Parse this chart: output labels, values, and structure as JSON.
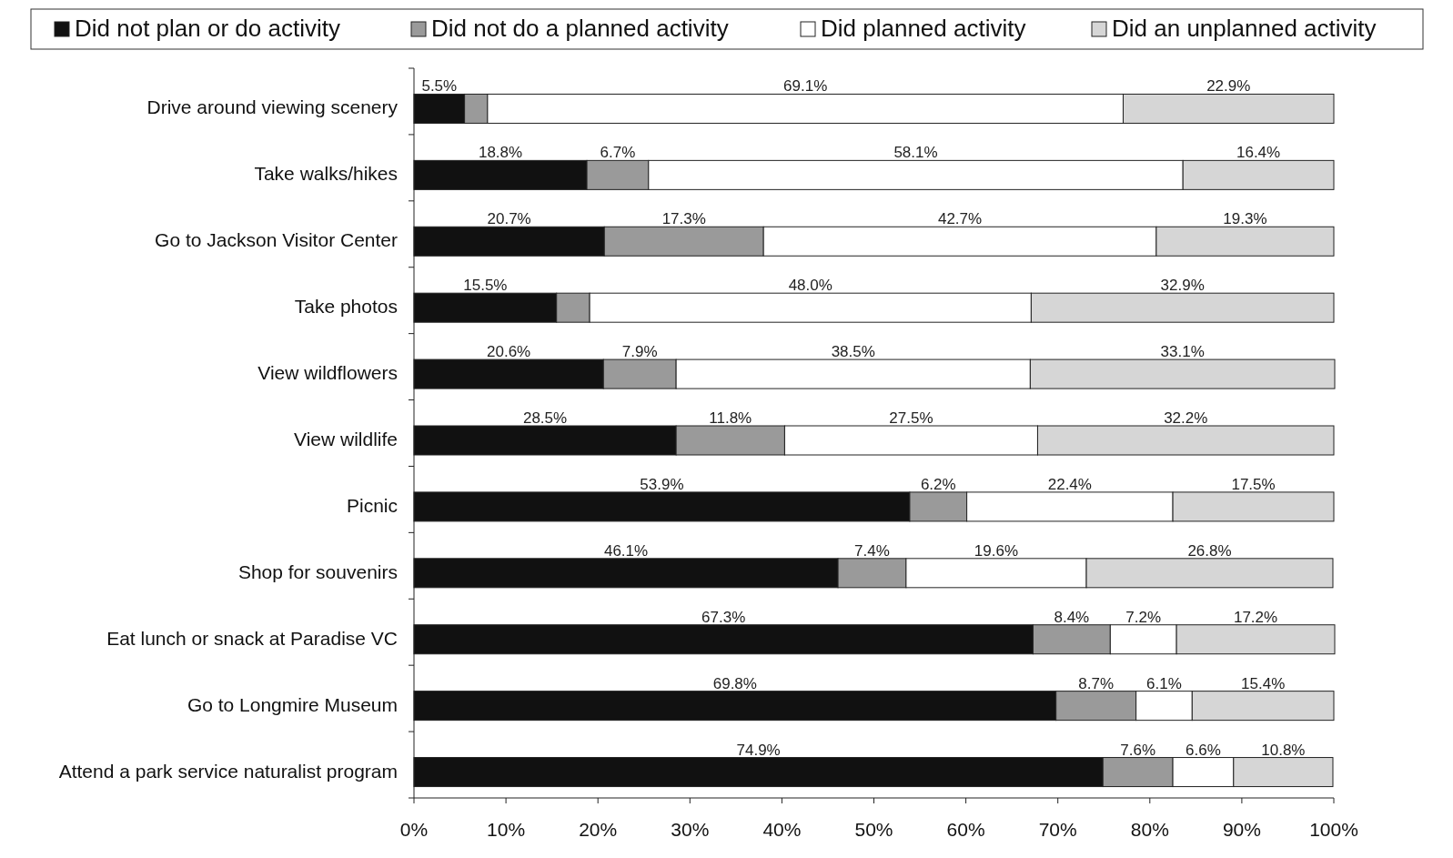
{
  "chart_data": {
    "type": "bar",
    "orientation": "horizontal",
    "stacked": true,
    "categories": [
      "Drive around viewing scenery",
      "Take walks/hikes",
      "Go to Jackson Visitor Center",
      "Take photos",
      "View wildflowers",
      "View wildlife",
      "Picnic",
      "Shop for souvenirs",
      "Eat lunch or snack at Paradise VC",
      "Go to Longmire Museum",
      "Attend a park service naturalist program"
    ],
    "series": [
      {
        "name": "Did not plan or do activity",
        "color": "#111111",
        "values": [
          5.5,
          18.8,
          20.7,
          15.5,
          20.6,
          28.5,
          53.9,
          46.1,
          67.3,
          69.8,
          74.9
        ],
        "value_labels": [
          "5.5%",
          "18.8%",
          "20.7%",
          "15.5%",
          "20.6%",
          "28.5%",
          "53.9%",
          "46.1%",
          "67.3%",
          "69.8%",
          "74.9%"
        ]
      },
      {
        "name": "Did not do a planned activity",
        "color": "#9a9a9a",
        "values": [
          2.5,
          6.7,
          17.3,
          3.6,
          7.9,
          11.8,
          6.2,
          7.4,
          8.4,
          8.7,
          7.6
        ],
        "value_labels": [
          null,
          "6.7%",
          "17.3%",
          null,
          "7.9%",
          "11.8%",
          "6.2%",
          "7.4%",
          "8.4%",
          "8.7%",
          "7.6%"
        ]
      },
      {
        "name": "Did planned activity",
        "color": "#ffffff",
        "values": [
          69.1,
          58.1,
          42.7,
          48.0,
          38.5,
          27.5,
          22.4,
          19.6,
          7.2,
          6.1,
          6.6
        ],
        "value_labels": [
          "69.1%",
          "58.1%",
          "42.7%",
          "48.0%",
          "38.5%",
          "27.5%",
          "22.4%",
          "19.6%",
          "7.2%",
          "6.1%",
          "6.6%"
        ]
      },
      {
        "name": "Did an unplanned activity",
        "color": "#d6d6d6",
        "values": [
          22.9,
          16.4,
          19.3,
          32.9,
          33.1,
          32.2,
          17.5,
          26.8,
          17.2,
          15.4,
          10.8
        ],
        "value_labels": [
          "22.9%",
          "16.4%",
          "19.3%",
          "32.9%",
          "33.1%",
          "32.2%",
          "17.5%",
          "26.8%",
          "17.2%",
          "15.4%",
          "10.8%"
        ]
      }
    ],
    "xlim": [
      0,
      100
    ],
    "xticks": [
      {
        "value": 0,
        "label": "0%"
      },
      {
        "value": 10,
        "label": "10%"
      },
      {
        "value": 20,
        "label": "20%"
      },
      {
        "value": 30,
        "label": "30%"
      },
      {
        "value": 40,
        "label": "40%"
      },
      {
        "value": 50,
        "label": "50%"
      },
      {
        "value": 60,
        "label": "60%"
      },
      {
        "value": 70,
        "label": "70%"
      },
      {
        "value": 80,
        "label": "80%"
      },
      {
        "value": 90,
        "label": "90%"
      },
      {
        "value": 100,
        "label": "100%"
      }
    ],
    "legend": "top",
    "grid": false
  }
}
